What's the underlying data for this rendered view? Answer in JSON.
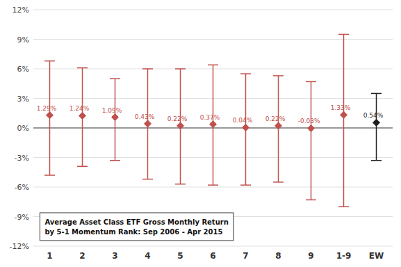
{
  "chart_data": {
    "type": "errorbar",
    "categories": [
      "1",
      "2",
      "3",
      "4",
      "5",
      "6",
      "7",
      "8",
      "9",
      "1-9",
      "EW"
    ],
    "values": [
      1.29,
      1.24,
      1.09,
      0.43,
      0.22,
      0.37,
      0.04,
      0.22,
      -0.03,
      1.33,
      0.54
    ],
    "value_labels": [
      "1.29%",
      "1.24%",
      "1.09%",
      "0.43%",
      "0.22%",
      "0.37%",
      "0.04%",
      "0.22%",
      "-0.03%",
      "1.33%",
      "0.54%"
    ],
    "highs": [
      6.8,
      6.1,
      5.0,
      6.0,
      6.0,
      6.4,
      5.5,
      5.3,
      4.7,
      9.5,
      3.5
    ],
    "lows": [
      -4.8,
      -3.9,
      -3.3,
      -5.2,
      -5.7,
      -5.8,
      -5.8,
      -5.5,
      -7.3,
      -8.0,
      -3.3
    ],
    "colors": [
      "#c0504d",
      "#c0504d",
      "#c0504d",
      "#c0504d",
      "#c0504d",
      "#c0504d",
      "#c0504d",
      "#c0504d",
      "#c0504d",
      "#c0504d",
      "#1f1f1f"
    ],
    "ylim": [
      -12,
      12
    ],
    "yticks": [
      {
        "value": -12,
        "label": "-12%"
      },
      {
        "value": -9,
        "label": "-9%"
      },
      {
        "value": -6,
        "label": "-6%"
      },
      {
        "value": -3,
        "label": "-3%"
      },
      {
        "value": 0,
        "label": "0%"
      },
      {
        "value": 3,
        "label": "3%"
      },
      {
        "value": 6,
        "label": "6%"
      },
      {
        "value": 9,
        "label": "9%"
      },
      {
        "value": 12,
        "label": "12%"
      }
    ],
    "grid": true,
    "data_labels": true,
    "annotations": [
      "Average Asset Class ETF Gross Monthly Return",
      "by 5-1 Momentum Rank: Sep 2006 - Apr 2015"
    ]
  }
}
